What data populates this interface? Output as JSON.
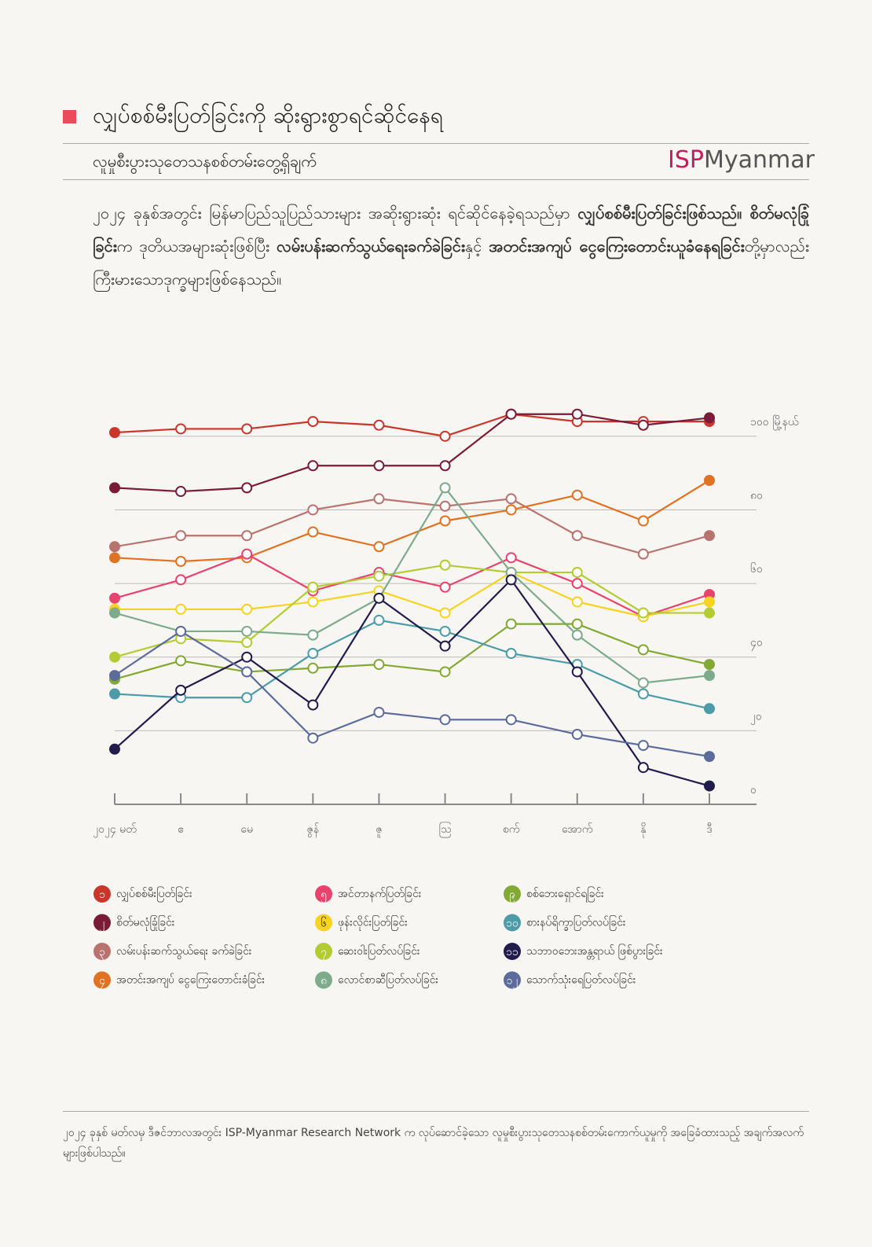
{
  "header": {
    "title": "လျှပ်စစ်မီးပြတ်ခြင်းကို ဆိုးရွားစွာရင်ဆိုင်နေရ",
    "subtitle": "လူမှုစီးပွားသုတေသနစစ်တမ်းတွေ့ရှိချက်",
    "brand": [
      "ISP",
      "Myanmar"
    ]
  },
  "paragraph": [
    {
      "text": "၂၀၂၄ ခုနှစ်အတွင်း မြန်မာပြည်သူပြည်သားများ အဆိုးရွားဆုံး ရင်ဆိုင်နေခဲ့ရသည်မှာ ",
      "bold": false
    },
    {
      "text": "လျှပ်စစ်မီးပြတ်ခြင်းဖြစ်သည်။ စိတ်မလုံခြုံခြင်း",
      "bold": true
    },
    {
      "text": "က ဒုတိယအများဆုံးဖြစ်ပြီး ",
      "bold": false
    },
    {
      "text": "လမ်းပန်းဆက်သွယ်ရေးခက်ခဲခြင်း",
      "bold": true
    },
    {
      "text": "နှင့် ",
      "bold": false
    },
    {
      "text": "အတင်းအကျပ် ငွေကြေးတောင်းယူခံနေရခြင်း",
      "bold": true
    },
    {
      "text": "တို့မှာလည်း ကြီးမားသောဒုက္ခများဖြစ်နေသည်။",
      "bold": false
    }
  ],
  "chart_data": {
    "type": "line",
    "categories": [
      "၂၀၂၄ မတ်",
      "ဧ",
      "မေ",
      "ဇွန်",
      "ဇူ",
      "ဩ",
      "စက်",
      "အောက်",
      "နို",
      "ဒီ"
    ],
    "ylim": [
      0,
      110
    ],
    "yticks": [
      {
        "value": 0,
        "label": "၀"
      },
      {
        "value": 20,
        "label": "၂၀"
      },
      {
        "value": 40,
        "label": "၄၀"
      },
      {
        "value": 60,
        "label": "၆၀"
      },
      {
        "value": 80,
        "label": "၈၀"
      },
      {
        "value": 100,
        "label": "၁၀၀ မြို့နယ်"
      }
    ],
    "grid": true,
    "series": [
      {
        "marker_label": "၁",
        "name": "လျှပ်စစ်မီးပြတ်ခြင်း",
        "color": "#c9372c",
        "values": [
          101,
          102,
          102,
          104,
          103,
          100,
          106,
          104,
          104,
          104
        ]
      },
      {
        "marker_label": "၂",
        "name": "စိတ်မလုံခြုံခြင်း",
        "color": "#7a1b38",
        "values": [
          86,
          85,
          86,
          92,
          92,
          92,
          106,
          106,
          103,
          105
        ]
      },
      {
        "marker_label": "၃",
        "name": "လမ်းပန်းဆက်သွယ်ရေး ခက်ခဲခြင်း",
        "color": "#b9736f",
        "values": [
          70,
          73,
          73,
          80,
          83,
          81,
          83,
          73,
          68,
          73
        ]
      },
      {
        "marker_label": "၄",
        "name": "အတင်းအကျပ် ငွေကြေးတောင်းခံခြင်း",
        "color": "#e07224",
        "values": [
          67,
          66,
          67,
          74,
          70,
          77,
          80,
          84,
          77,
          88
        ]
      },
      {
        "marker_label": "၅",
        "name": "အင်တာနက်ပြတ်ခြင်း",
        "color": "#e8436f",
        "values": [
          56,
          61,
          68,
          58,
          63,
          59,
          67,
          60,
          51,
          57
        ]
      },
      {
        "marker_label": "၆",
        "name": "ဖုန်းလိုင်းပြတ်ခြင်း",
        "color": "#f5d320",
        "values": [
          53,
          53,
          53,
          55,
          58,
          52,
          63,
          55,
          51,
          55
        ]
      },
      {
        "marker_label": "၇",
        "name": "ဆေးဝါးပြတ်လပ်ခြင်း",
        "color": "#b3cc34",
        "values": [
          40,
          45,
          44,
          59,
          62,
          65,
          63,
          63,
          52,
          52
        ]
      },
      {
        "marker_label": "၈",
        "name": "လောင်စာဆီပြတ်လပ်ခြင်း",
        "color": "#7dab8b",
        "values": [
          52,
          47,
          47,
          46,
          56,
          86,
          63,
          46,
          33,
          35
        ]
      },
      {
        "marker_label": "၉",
        "name": "စစ်ဘေးရှောင်ရခြင်း",
        "color": "#82a933",
        "values": [
          34,
          39,
          36,
          37,
          38,
          36,
          49,
          49,
          42,
          38
        ]
      },
      {
        "marker_label": "၁၀",
        "name": "စားနပ်ရိက္ခာပြတ်လပ်ခြင်း",
        "color": "#4b9ba8",
        "values": [
          30,
          29,
          29,
          41,
          50,
          47,
          41,
          38,
          30,
          26
        ]
      },
      {
        "marker_label": "၁၁",
        "name": "သဘာဝဘေးအန္တရာယ် ဖြစ်ပွားခြင်း",
        "color": "#211c4b",
        "values": [
          15,
          31,
          40,
          27,
          56,
          43,
          61,
          36,
          10,
          5
        ]
      },
      {
        "marker_label": "၁၂",
        "name": "သောက်သုံးရေပြတ်လပ်ခြင်း",
        "color": "#5b6b9b",
        "values": [
          35,
          47,
          36,
          18,
          25,
          23,
          23,
          19,
          16,
          13
        ]
      }
    ]
  },
  "footer": "၂၀၂၄ ခုနှစ် မတ်လမှ ဒီဇင်ဘာလအတွင်း ISP-Myanmar Research Network က လုပ်ဆောင်ခဲ့သော လူမှုစီးပွားသုတေသနစစ်တမ်းကောက်ယူမှုကို အခြေခံထားသည့် အချက်အလက်များဖြစ်ပါသည်။"
}
